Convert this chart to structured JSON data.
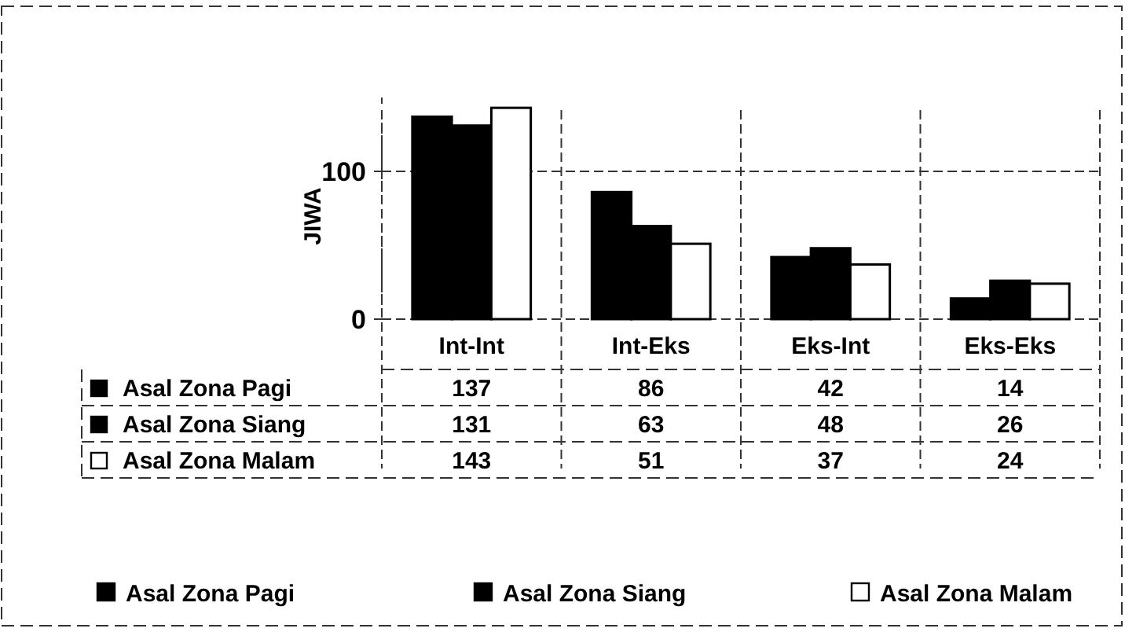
{
  "chart_data": {
    "type": "bar",
    "ylabel": "JIWA",
    "categories": [
      "Int-Int",
      "Int-Eks",
      "Eks-Int",
      "Eks-Eks"
    ],
    "series": [
      {
        "name": "Asal Zona Pagi",
        "color": "#000000",
        "values": [
          137,
          86,
          42,
          14
        ]
      },
      {
        "name": "Asal Zona Siang",
        "color": "#000000",
        "values": [
          131,
          63,
          48,
          26
        ]
      },
      {
        "name": "Asal Zona Malam",
        "color": "#ffffff",
        "values": [
          143,
          51,
          37,
          24
        ]
      }
    ],
    "ylim": [
      0,
      150
    ],
    "yticks": [
      0,
      100
    ],
    "grid": "y",
    "legend": "bottom",
    "data_labels": true
  }
}
